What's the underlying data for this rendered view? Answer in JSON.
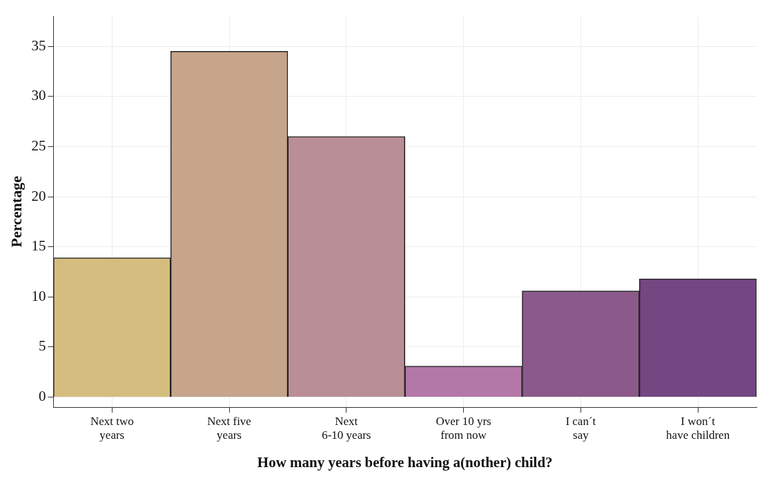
{
  "chart_data": {
    "type": "bar",
    "xlabel": "How many years before having a(nother) child?",
    "ylabel": "Percentage",
    "categories": [
      "Next two\nyears",
      "Next five\nyears",
      "Next\n6-10 years",
      "Over 10 yrs\nfrom now",
      "I can´t\nsay",
      "I won´t\nhave children"
    ],
    "values": [
      13.9,
      34.5,
      26.0,
      3.1,
      10.6,
      11.8
    ],
    "colors": [
      "#d4bd7e",
      "#c6a58b",
      "#b98e97",
      "#b377a8",
      "#8b5a8a",
      "#744682"
    ],
    "ylim": [
      -1,
      38
    ],
    "yticks": [
      0,
      5,
      10,
      15,
      20,
      25,
      30,
      35
    ],
    "grid": true
  }
}
